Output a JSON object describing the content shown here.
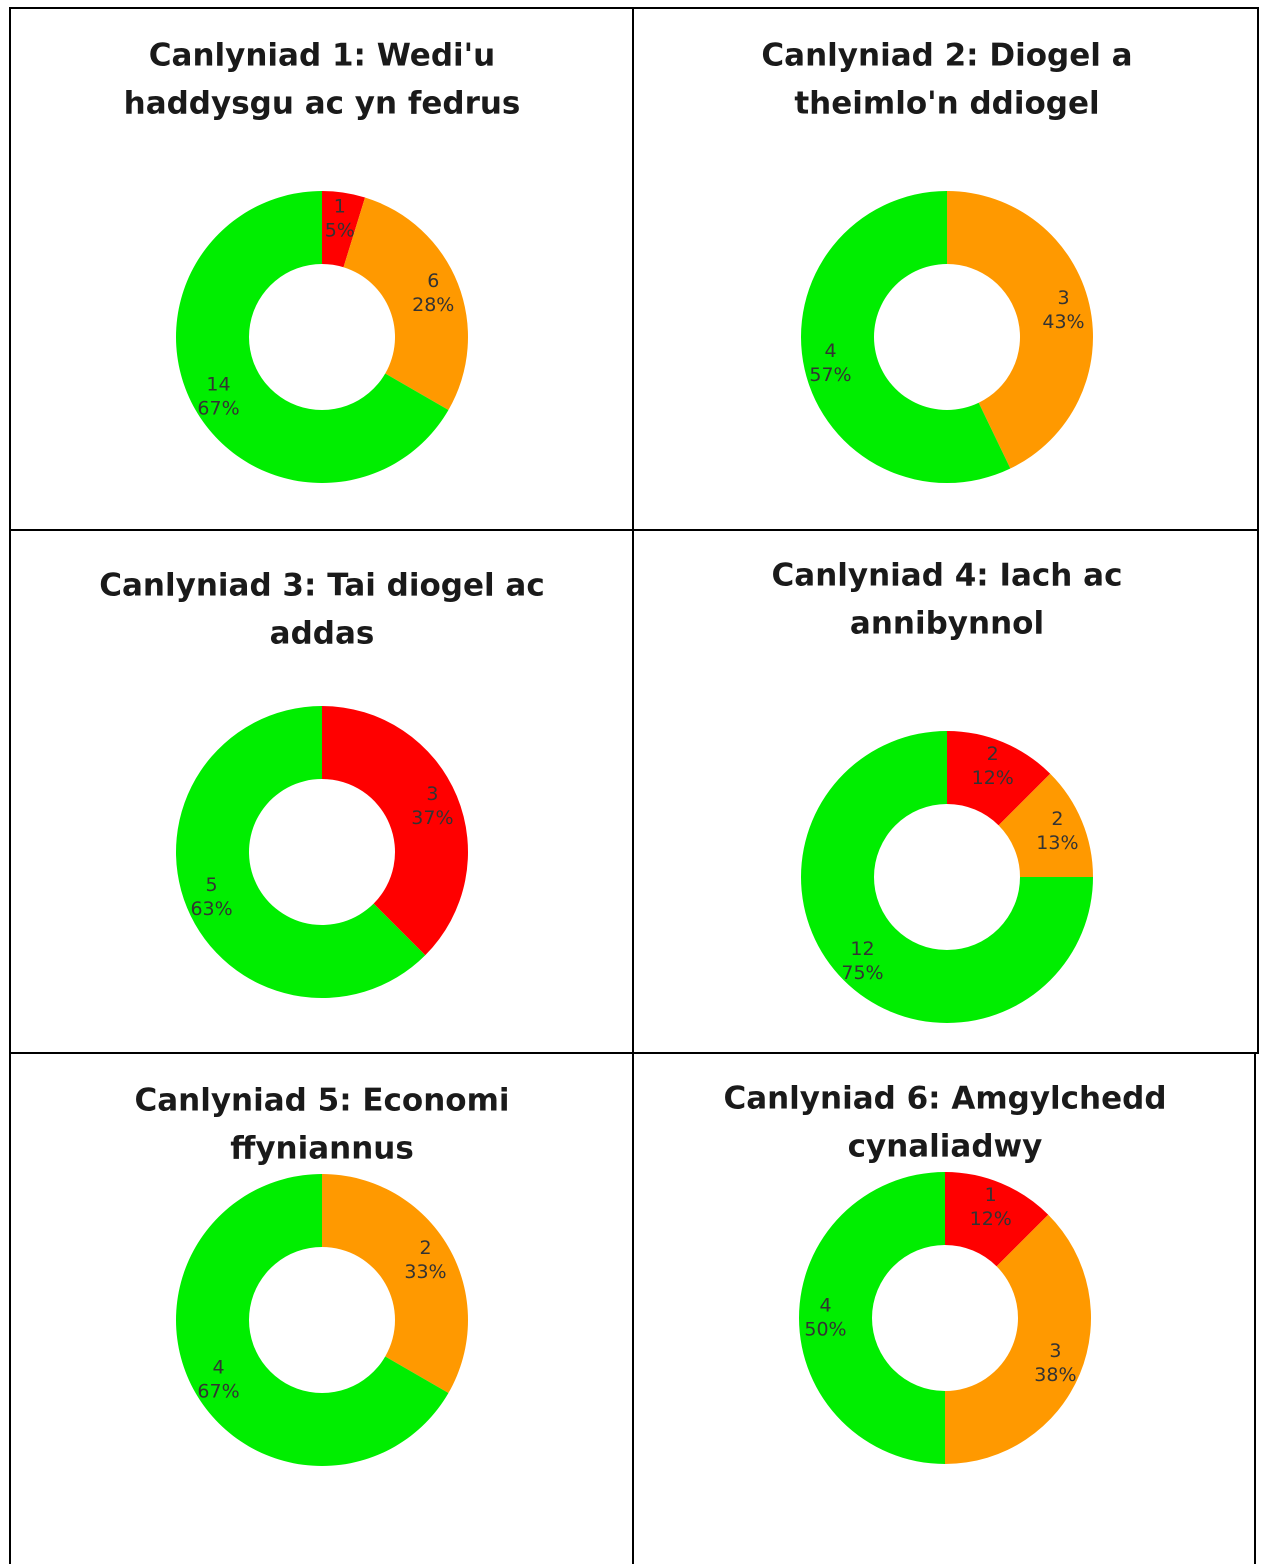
{
  "chart_data": [
    {
      "type": "pie",
      "title": [
        "Canlyniad 1: Wedi'u",
        "haddysgu ac yn fedrus"
      ],
      "values": [
        1,
        6,
        14
      ],
      "value_labels": [
        [
          "1",
          "5%"
        ],
        [
          "6",
          "28%"
        ],
        [
          "14",
          "67%"
        ]
      ],
      "colors": [
        "#ff0000",
        "#ff9900",
        "#00ee00"
      ]
    },
    {
      "type": "pie",
      "title": [
        "Canlyniad 2: Diogel a",
        "theimlo'n ddiogel"
      ],
      "values": [
        3,
        4
      ],
      "value_labels": [
        [
          "3",
          "43%"
        ],
        [
          "4",
          "57%"
        ]
      ],
      "colors": [
        "#ff9900",
        "#00ee00"
      ]
    },
    {
      "type": "pie",
      "title": [
        "Canlyniad 3: Tai diogel ac",
        "addas"
      ],
      "values": [
        3,
        5
      ],
      "value_labels": [
        [
          "3",
          "37%"
        ],
        [
          "5",
          "63%"
        ]
      ],
      "colors": [
        "#ff0000",
        "#00ee00"
      ]
    },
    {
      "type": "pie",
      "title": [
        "Canlyniad 4: Iach ac",
        "annibynnol"
      ],
      "values": [
        2,
        2,
        12
      ],
      "value_labels": [
        [
          "2",
          "12%"
        ],
        [
          "2",
          "13%"
        ],
        [
          "12",
          "75%"
        ]
      ],
      "colors": [
        "#ff0000",
        "#ff9900",
        "#00ee00"
      ]
    },
    {
      "type": "pie",
      "title": [
        "Canlyniad 5: Economi",
        "ffyniannus"
      ],
      "values": [
        2,
        4
      ],
      "value_labels": [
        [
          "2",
          "33%"
        ],
        [
          "4",
          "67%"
        ]
      ],
      "colors": [
        "#ff9900",
        "#00ee00"
      ]
    },
    {
      "type": "pie",
      "title": [
        "Canlyniad 6: Amgylchedd",
        "cynaliadwy"
      ],
      "values": [
        1,
        3,
        4
      ],
      "value_labels": [
        [
          "1",
          "12%"
        ],
        [
          "3",
          "38%"
        ],
        [
          "4",
          "50%"
        ]
      ],
      "colors": [
        "#ff0000",
        "#ff9900",
        "#00ee00"
      ]
    }
  ]
}
